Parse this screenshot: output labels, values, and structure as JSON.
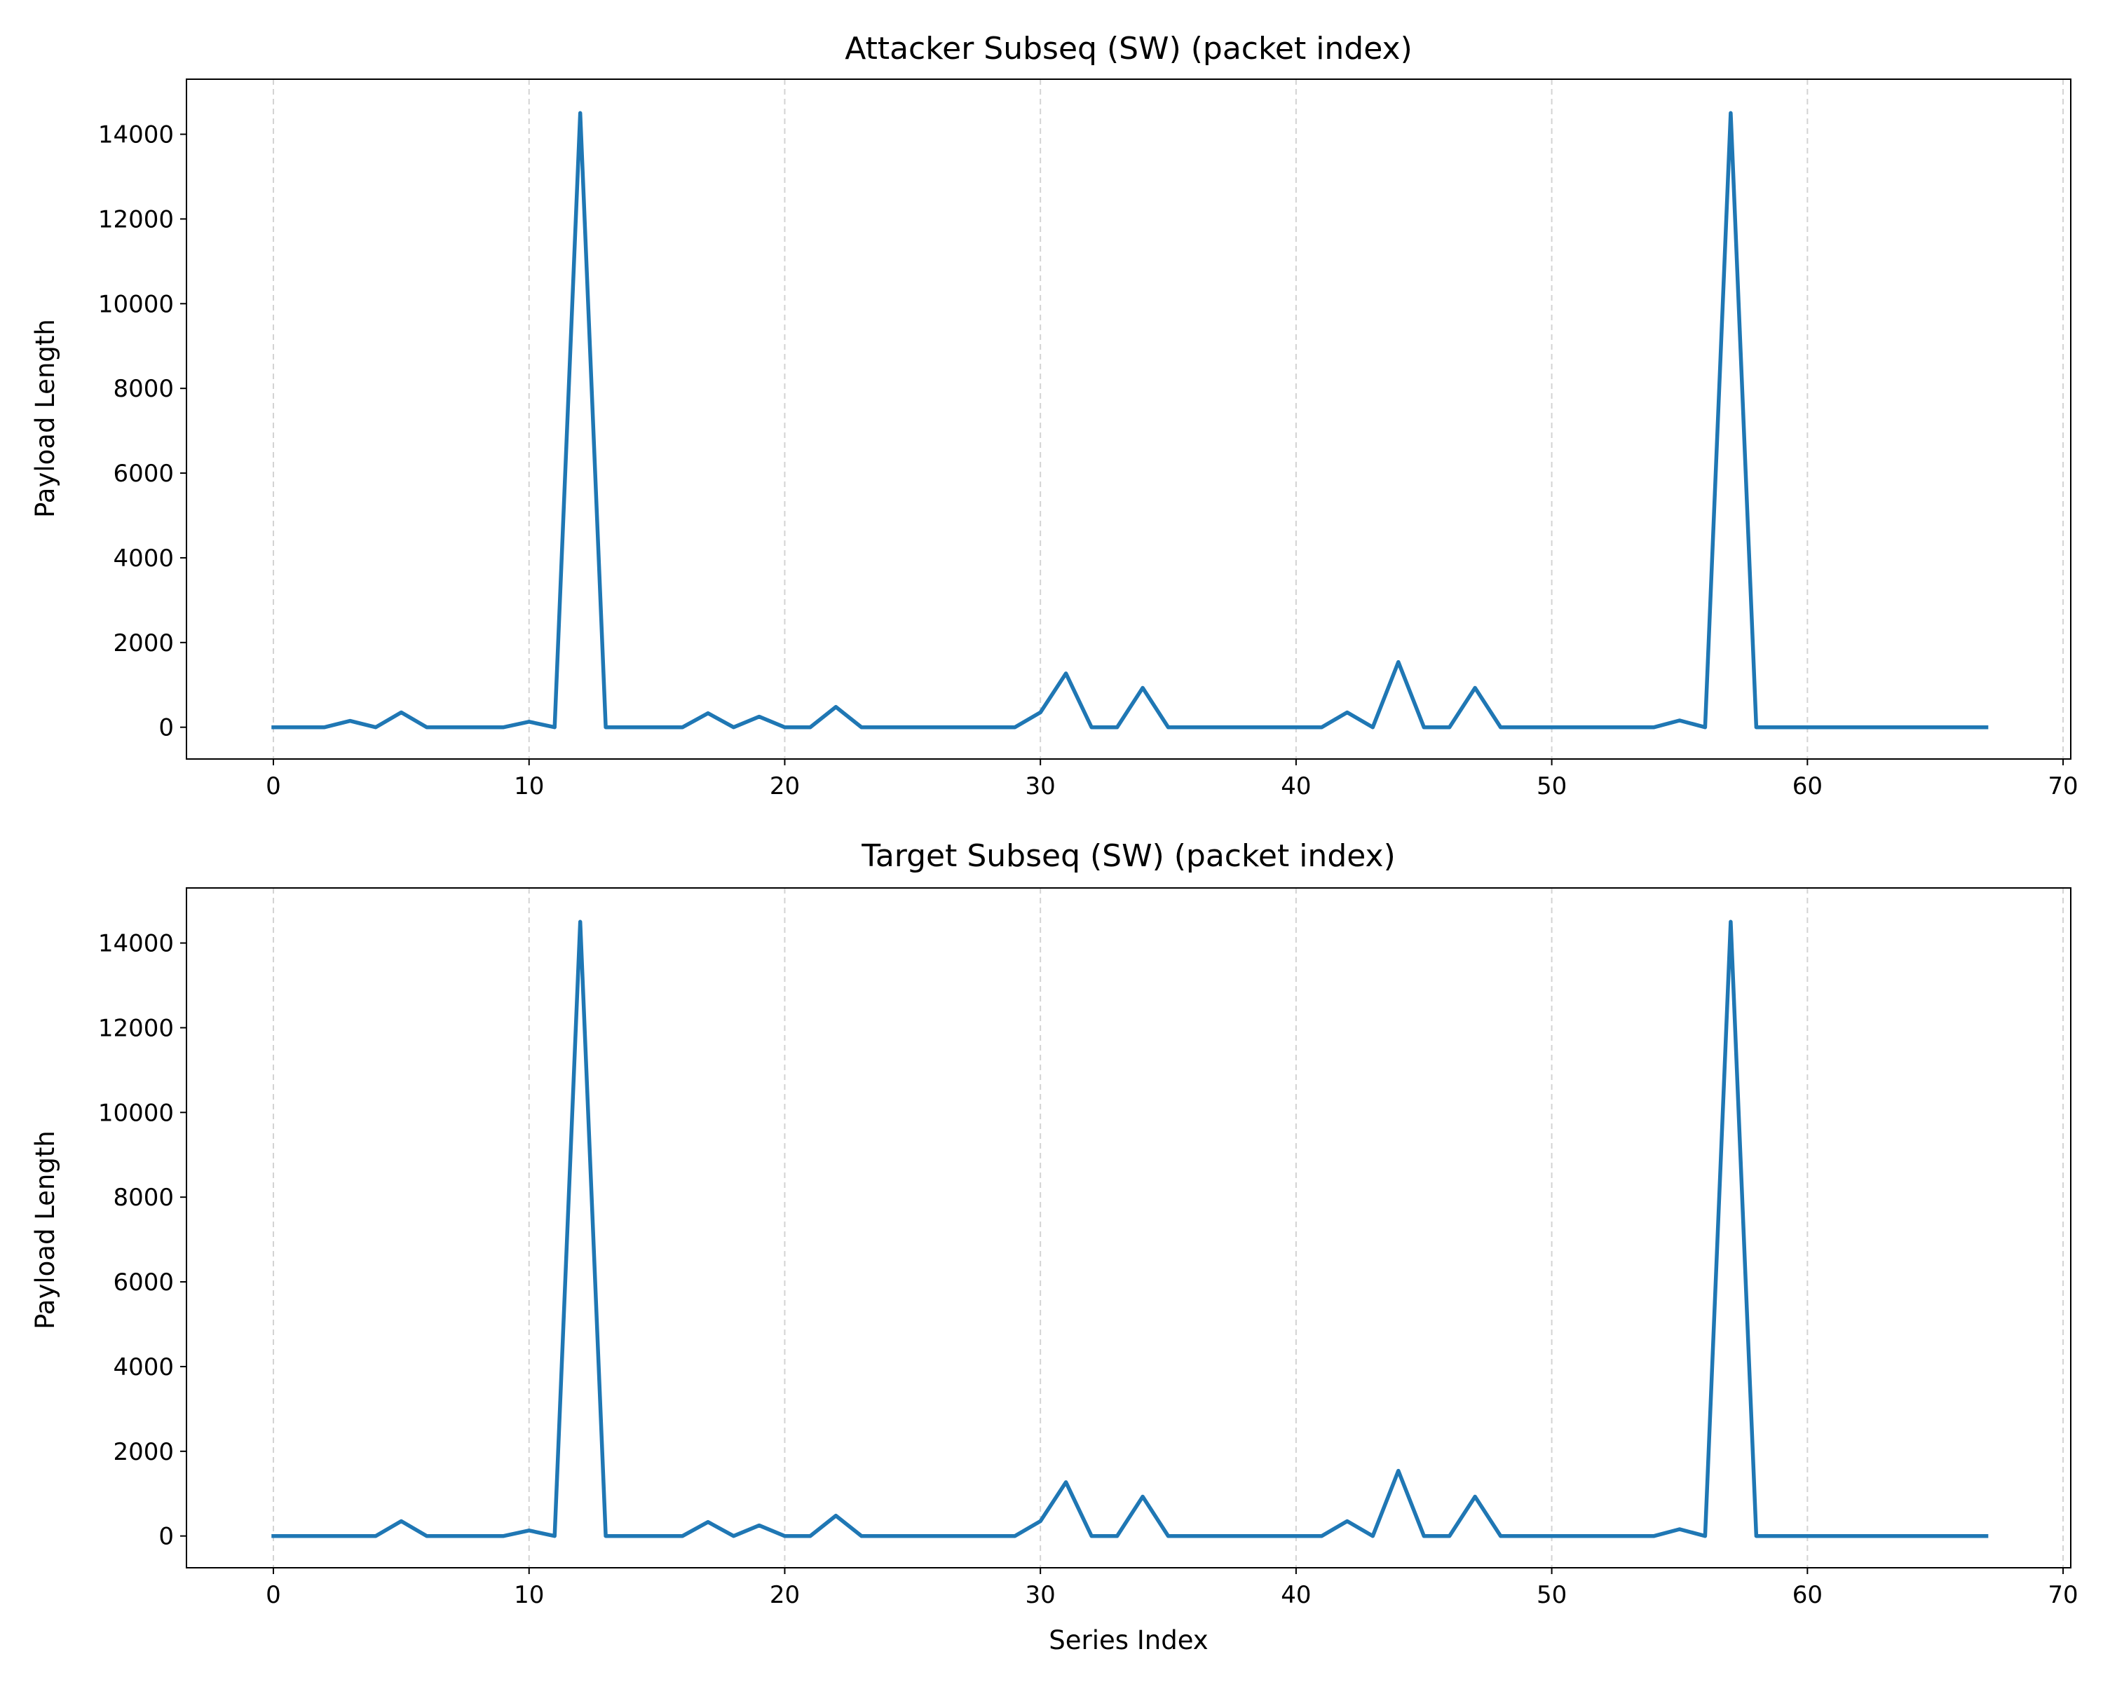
{
  "chart_data": [
    {
      "type": "line",
      "title": "Attacker Subseq (SW) (packet index)",
      "xlabel": "",
      "ylabel": "Payload Length",
      "xlim": [
        -3.4,
        70.3
      ],
      "ylim": [
        -750,
        15300
      ],
      "xticks": [
        0,
        10,
        20,
        30,
        40,
        50,
        60,
        70
      ],
      "yticks": [
        0,
        2000,
        4000,
        6000,
        8000,
        10000,
        12000,
        14000
      ],
      "grid": "x-dashed",
      "color": "#1f77b4",
      "x": [
        0,
        1,
        2,
        3,
        4,
        5,
        6,
        7,
        8,
        9,
        10,
        11,
        12,
        13,
        14,
        15,
        16,
        17,
        18,
        19,
        20,
        21,
        22,
        23,
        24,
        25,
        26,
        27,
        28,
        29,
        30,
        31,
        32,
        33,
        34,
        35,
        36,
        37,
        38,
        39,
        40,
        41,
        42,
        43,
        44,
        45,
        46,
        47,
        48,
        49,
        50,
        51,
        52,
        53,
        54,
        55,
        56,
        57,
        58,
        59,
        60,
        61,
        62,
        63,
        64,
        65,
        66,
        67
      ],
      "y": [
        0,
        0,
        0,
        150,
        0,
        350,
        0,
        0,
        0,
        0,
        130,
        0,
        14500,
        0,
        0,
        0,
        0,
        330,
        0,
        250,
        0,
        0,
        480,
        0,
        0,
        0,
        0,
        0,
        0,
        0,
        350,
        1270,
        0,
        0,
        930,
        0,
        0,
        0,
        0,
        0,
        0,
        0,
        350,
        0,
        1540,
        0,
        0,
        930,
        0,
        0,
        0,
        0,
        0,
        0,
        0,
        160,
        0,
        14500,
        0,
        0,
        0,
        0,
        0,
        0,
        0,
        0,
        0,
        0
      ]
    },
    {
      "type": "line",
      "title": "Target Subseq (SW) (packet index)",
      "xlabel": "Series Index",
      "ylabel": "Payload Length",
      "xlim": [
        -3.4,
        70.3
      ],
      "ylim": [
        -750,
        15300
      ],
      "xticks": [
        0,
        10,
        20,
        30,
        40,
        50,
        60,
        70
      ],
      "yticks": [
        0,
        2000,
        4000,
        6000,
        8000,
        10000,
        12000,
        14000
      ],
      "grid": "x-dashed",
      "color": "#1f77b4",
      "x": [
        0,
        1,
        2,
        3,
        4,
        5,
        6,
        7,
        8,
        9,
        10,
        11,
        12,
        13,
        14,
        15,
        16,
        17,
        18,
        19,
        20,
        21,
        22,
        23,
        24,
        25,
        26,
        27,
        28,
        29,
        30,
        31,
        32,
        33,
        34,
        35,
        36,
        37,
        38,
        39,
        40,
        41,
        42,
        43,
        44,
        45,
        46,
        47,
        48,
        49,
        50,
        51,
        52,
        53,
        54,
        55,
        56,
        57,
        58,
        59,
        60,
        61,
        62,
        63,
        64,
        65,
        66,
        67
      ],
      "y": [
        0,
        0,
        0,
        0,
        0,
        350,
        0,
        0,
        0,
        0,
        130,
        0,
        14500,
        0,
        0,
        0,
        0,
        330,
        0,
        250,
        0,
        0,
        480,
        0,
        0,
        0,
        0,
        0,
        0,
        0,
        350,
        1270,
        0,
        0,
        930,
        0,
        0,
        0,
        0,
        0,
        0,
        0,
        350,
        0,
        1540,
        0,
        0,
        930,
        0,
        0,
        0,
        0,
        0,
        0,
        0,
        160,
        0,
        14500,
        0,
        0,
        0,
        0,
        0,
        0,
        0,
        0,
        0,
        0
      ]
    }
  ]
}
